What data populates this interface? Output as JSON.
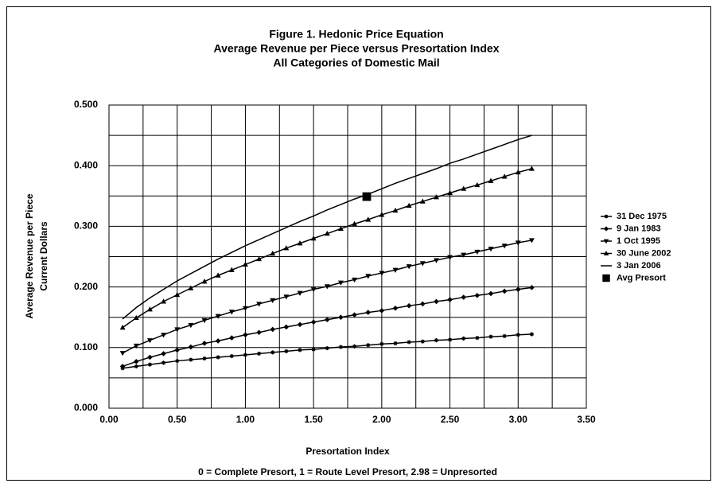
{
  "chart_data": {
    "type": "line",
    "title": [
      "Figure 1.  Hedonic Price Equation",
      "Average Revenue per Piece versus Presortation Index",
      "All Categories of Domestic Mail"
    ],
    "ylabel": [
      "Average Revenue per Piece",
      "Current Dollars"
    ],
    "xlabel": "Presortation Index",
    "annotation": "0 = Complete Presort, 1 = Route Level Presort, 2.98 = Unpresorted",
    "xlim": [
      0,
      3.5
    ],
    "xticks": [
      {
        "value": 0,
        "label": "0.00"
      },
      {
        "value": 0.5,
        "label": "0.50"
      },
      {
        "value": 1,
        "label": "1.00"
      },
      {
        "value": 1.5,
        "label": "1.50"
      },
      {
        "value": 2,
        "label": "2.00"
      },
      {
        "value": 2.5,
        "label": "2.50"
      },
      {
        "value": 3,
        "label": "3.00"
      },
      {
        "value": 3.5,
        "label": "3.50"
      }
    ],
    "ylim": [
      0,
      0.5
    ],
    "yticks": [
      {
        "value": 0,
        "label": "0.000"
      },
      {
        "value": 0.1,
        "label": "0.100"
      },
      {
        "value": 0.2,
        "label": "0.200"
      },
      {
        "value": 0.3,
        "label": "0.300"
      },
      {
        "value": 0.4,
        "label": "0.400"
      },
      {
        "value": 0.5,
        "label": "0.500"
      }
    ],
    "grid": true,
    "legend": "right",
    "x": [
      0.1,
      0.2,
      0.3,
      0.4,
      0.5,
      0.6,
      0.7,
      0.8,
      0.9,
      1.0,
      1.1,
      1.2,
      1.3,
      1.4,
      1.5,
      1.6,
      1.7,
      1.8,
      1.9,
      2.0,
      2.1,
      2.2,
      2.3,
      2.4,
      2.5,
      2.6,
      2.7,
      2.8,
      2.9,
      3.0,
      3.1
    ],
    "series": [
      {
        "name": "31 Dec 1975",
        "color": "#000000",
        "marker": "star",
        "values": [
          0.066,
          0.069,
          0.072,
          0.075,
          0.078,
          0.08,
          0.082,
          0.084,
          0.086,
          0.088,
          0.09,
          0.092,
          0.094,
          0.096,
          0.097,
          0.099,
          0.101,
          0.102,
          0.104,
          0.106,
          0.107,
          0.109,
          0.11,
          0.112,
          0.113,
          0.115,
          0.116,
          0.118,
          0.119,
          0.121,
          0.122
        ]
      },
      {
        "name": "9 Jan 1983",
        "color": "#000000",
        "marker": "diamond",
        "values": [
          0.069,
          0.077,
          0.084,
          0.09,
          0.096,
          0.101,
          0.107,
          0.111,
          0.116,
          0.121,
          0.125,
          0.13,
          0.134,
          0.138,
          0.142,
          0.146,
          0.15,
          0.154,
          0.158,
          0.161,
          0.165,
          0.169,
          0.172,
          0.176,
          0.179,
          0.183,
          0.186,
          0.189,
          0.193,
          0.196,
          0.199
        ]
      },
      {
        "name": "1 Oct 1995",
        "color": "#000000",
        "marker": "triangle-down",
        "values": [
          0.091,
          0.103,
          0.112,
          0.121,
          0.13,
          0.137,
          0.145,
          0.152,
          0.159,
          0.165,
          0.172,
          0.178,
          0.184,
          0.19,
          0.196,
          0.201,
          0.207,
          0.212,
          0.218,
          0.223,
          0.228,
          0.234,
          0.239,
          0.244,
          0.249,
          0.253,
          0.258,
          0.263,
          0.268,
          0.273,
          0.277
        ]
      },
      {
        "name": "30 June 2002",
        "color": "#000000",
        "marker": "triangle-up",
        "values": [
          0.133,
          0.149,
          0.163,
          0.176,
          0.187,
          0.198,
          0.209,
          0.219,
          0.228,
          0.237,
          0.246,
          0.255,
          0.264,
          0.272,
          0.28,
          0.288,
          0.296,
          0.304,
          0.311,
          0.319,
          0.326,
          0.334,
          0.341,
          0.348,
          0.355,
          0.362,
          0.368,
          0.375,
          0.382,
          0.389,
          0.395
        ]
      },
      {
        "name": "3 Jan 2006",
        "color": "#000000",
        "marker": "none",
        "values": [
          0.147,
          0.166,
          0.182,
          0.196,
          0.21,
          0.222,
          0.234,
          0.246,
          0.257,
          0.268,
          0.278,
          0.288,
          0.298,
          0.308,
          0.317,
          0.327,
          0.336,
          0.345,
          0.353,
          0.362,
          0.371,
          0.379,
          0.387,
          0.395,
          0.404,
          0.411,
          0.419,
          0.427,
          0.435,
          0.443,
          0.45
        ]
      },
      {
        "name": "Avg Presort",
        "color": "#000000",
        "marker": "square",
        "line": false,
        "x": [
          1.89
        ],
        "values": [
          0.349
        ]
      }
    ]
  }
}
